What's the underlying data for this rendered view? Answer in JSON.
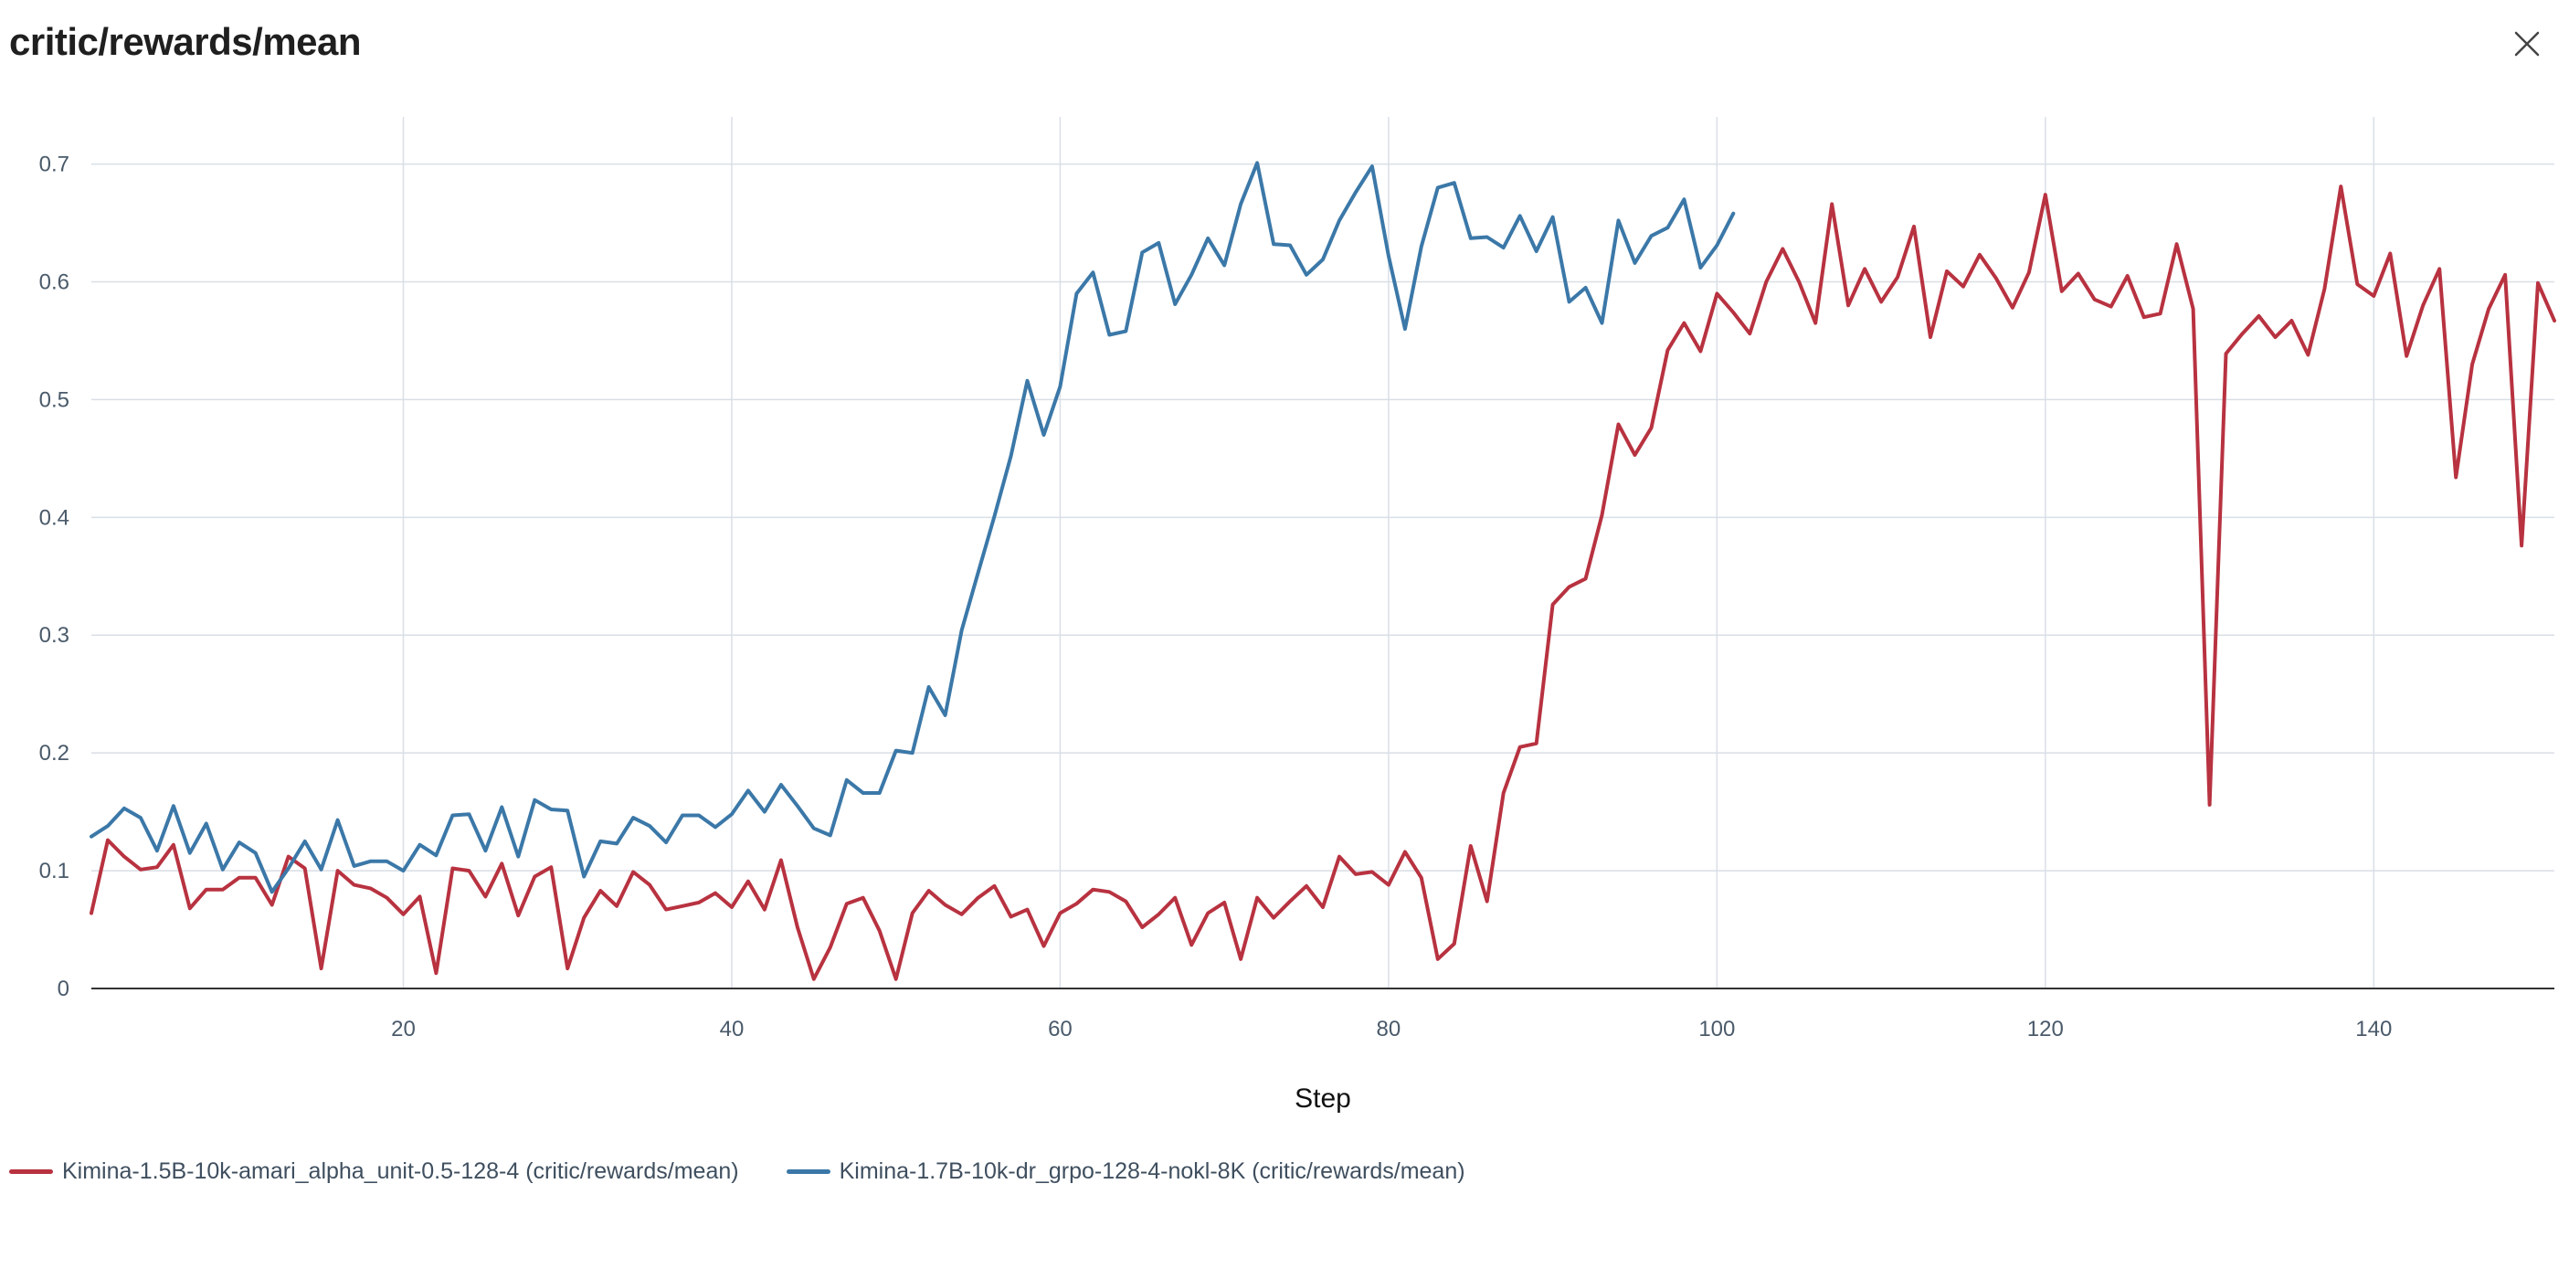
{
  "panel": {
    "title": "critic/rewards/mean"
  },
  "chart_data": {
    "type": "line",
    "title": "critic/rewards/mean",
    "xlabel": "Step",
    "ylabel": "",
    "xlim": [
      1,
      151
    ],
    "ylim": [
      0,
      0.74
    ],
    "xticks": [
      20,
      40,
      60,
      80,
      100,
      120,
      140
    ],
    "xtick_labels": [
      "20",
      "40",
      "60",
      "80",
      "100",
      "120",
      "140"
    ],
    "yticks": [
      0,
      0.1,
      0.2,
      0.3,
      0.4,
      0.5,
      0.6,
      0.7
    ],
    "ytick_labels": [
      "0",
      "0.1",
      "0.2",
      "0.3",
      "0.4",
      "0.5",
      "0.6",
      "0.7"
    ],
    "grid": true,
    "legend_position": "bottom-left",
    "series": [
      {
        "name": "Kimina-1.5B-10k-amari_alpha_unit-0.5-128-4 (critic/rewards/mean)",
        "color": "#b83240",
        "x_start": 1,
        "values": [
          0.064,
          0.126,
          0.112,
          0.101,
          0.103,
          0.122,
          0.068,
          0.084,
          0.084,
          0.094,
          0.094,
          0.071,
          0.112,
          0.102,
          0.017,
          0.1,
          0.088,
          0.085,
          0.077,
          0.063,
          0.078,
          0.013,
          0.102,
          0.1,
          0.078,
          0.106,
          0.062,
          0.095,
          0.103,
          0.017,
          0.06,
          0.083,
          0.07,
          0.099,
          0.088,
          0.067,
          0.07,
          0.073,
          0.081,
          0.069,
          0.091,
          0.067,
          0.109,
          0.052,
          0.008,
          0.035,
          0.072,
          0.077,
          0.049,
          0.008,
          0.064,
          0.083,
          0.071,
          0.063,
          0.077,
          0.087,
          0.061,
          0.067,
          0.036,
          0.064,
          0.072,
          0.084,
          0.082,
          0.074,
          0.052,
          0.063,
          0.077,
          0.037,
          0.064,
          0.073,
          0.025,
          0.077,
          0.06,
          0.074,
          0.087,
          0.069,
          0.112,
          0.097,
          0.099,
          0.088,
          0.116,
          0.094,
          0.025,
          0.038,
          0.121,
          0.074,
          0.166,
          0.205,
          0.208,
          0.326,
          0.341,
          0.348,
          0.402,
          0.479,
          0.453,
          0.476,
          0.542,
          0.565,
          0.541,
          0.59,
          0.574,
          0.556,
          0.6,
          0.628,
          0.6,
          0.565,
          0.666,
          0.58,
          0.611,
          0.583,
          0.604,
          0.647,
          0.553,
          0.609,
          0.596,
          0.623,
          0.603,
          0.578,
          0.608,
          0.674,
          0.592,
          0.607,
          0.585,
          0.579,
          0.605,
          0.57,
          0.573,
          0.632,
          0.577,
          0.156,
          0.539,
          0.556,
          0.571,
          0.553,
          0.567,
          0.538,
          0.594,
          0.681,
          0.598,
          0.588,
          0.624,
          0.537,
          0.58,
          0.611,
          0.434,
          0.53,
          0.577,
          0.606,
          0.376,
          0.599,
          0.567
        ]
      },
      {
        "name": "Kimina-1.7B-10k-dr_grpo-128-4-nokl-8K (critic/rewards/mean)",
        "color": "#3b78a8",
        "x_start": 1,
        "values": [
          0.129,
          0.138,
          0.153,
          0.145,
          0.117,
          0.155,
          0.115,
          0.14,
          0.101,
          0.124,
          0.115,
          0.082,
          0.102,
          0.125,
          0.101,
          0.143,
          0.104,
          0.108,
          0.108,
          0.1,
          0.122,
          0.113,
          0.147,
          0.148,
          0.117,
          0.154,
          0.112,
          0.16,
          0.152,
          0.151,
          0.095,
          0.125,
          0.123,
          0.145,
          0.138,
          0.124,
          0.147,
          0.147,
          0.137,
          0.148,
          0.168,
          0.15,
          0.173,
          0.155,
          0.136,
          0.13,
          0.177,
          0.166,
          0.166,
          0.202,
          0.2,
          0.256,
          0.232,
          0.304,
          0.353,
          0.401,
          0.452,
          0.516,
          0.47,
          0.511,
          0.59,
          0.608,
          0.555,
          0.558,
          0.625,
          0.633,
          0.581,
          0.606,
          0.637,
          0.614,
          0.666,
          0.701,
          0.632,
          0.631,
          0.606,
          0.619,
          0.652,
          0.676,
          0.698,
          0.622,
          0.56,
          0.63,
          0.68,
          0.684,
          0.637,
          0.638,
          0.629,
          0.656,
          0.626,
          0.655,
          0.583,
          0.595,
          0.565,
          0.652,
          0.616,
          0.639,
          0.646,
          0.67,
          0.612,
          0.631,
          0.658
        ]
      }
    ]
  }
}
